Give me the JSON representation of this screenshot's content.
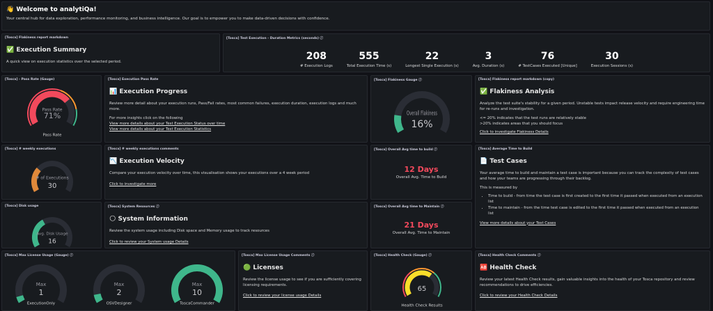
{
  "header": {
    "title": "👋 Welcome to analytiQa!",
    "subtitle": "Your central hub for data exploration, performance monitoring, and business intelligence. Our goal is to empower you to make data-driven decisions with confidence."
  },
  "execution_summary": {
    "panel_title": "[Tosca] Flakiness report markdown",
    "heading": "✅ Execution Summary",
    "text": "A quick view on execution statistics over the selected period."
  },
  "duration_metrics": {
    "panel_title": "[Tosca] Test Execution - Duration Metrics (seconds) ⓘ",
    "stats": [
      {
        "value": 208,
        "label": "# Execution Logs"
      },
      {
        "value": 555,
        "label": "Total Execution Time (s)"
      },
      {
        "value": 22,
        "label": "Longest Single Execution (s)"
      },
      {
        "value": 3,
        "label": "Avg. Duration (s)"
      },
      {
        "value": 76,
        "label": "# TestCases Executed [Unique]"
      },
      {
        "value": 30,
        "label": "Execution Sessions (s)"
      }
    ]
  },
  "pass_rate_gauge": {
    "panel_title": "[Tosca] - Pass Rate (Gauge)",
    "gauge_title": "Pass Rate",
    "value": 71,
    "value_label": "71%",
    "caption": "Pass Rate"
  },
  "execution_progress": {
    "panel_title": "[Tosca] Execution Pass Rate",
    "heading": "📊 Execution Progress",
    "text": "Review more detail about your execution runs, Pass/Fail rates, most common failures, execution duration, execution logs and much more.",
    "links_intro": "For more insights click on the following",
    "links": [
      "View more details about your Test Execution Status over time",
      "View more details about your Test Execution Statistics"
    ]
  },
  "flakiness_gauge": {
    "panel_title": "[Tosca] Flakiness Gauge ⓘ",
    "gauge_title": "Overall Flakiness",
    "value": 16,
    "value_label": "16%"
  },
  "flakiness_analysis": {
    "panel_title": "[Tosca] Flakiness report markdown (copy)",
    "heading": "✅ Flakiness Analysis",
    "text": "Analyze the test suite's stability for a given period. Unstable tests impact release velocity and require engineering time for re-runs and investigation.",
    "notes": [
      "<= 20% indicates that the test runs are relatively stable",
      ">20% indicates areas that you should focus"
    ],
    "link": "Click to investigate Flakiness Details"
  },
  "weekly_executions_gauge": {
    "panel_title": "[Tosca] # weekly executions",
    "gauge_title": "# of Executions",
    "value": 30
  },
  "execution_velocity": {
    "panel_title": "[Tosca] # weekly executions comments",
    "heading": "📉 Execution Velocity",
    "text": "Compare your execution velocity over time, this visualisation shows your executions over a 4 week period",
    "link": "Click to investigate more"
  },
  "avg_time_to_build": {
    "panel_title": "[Tosca] Overall Avg time to build ⓘ",
    "value": 12,
    "value_label": "12 Days",
    "caption": "Overall Avg. Time to Build"
  },
  "test_cases": {
    "panel_title": "[Tosca] Average Time to Build",
    "heading": "📄 Test Cases",
    "text": "Your average time to build and maintain a test case is important because you can track the complexity of test cases and how your teams are progressing through their backlog.",
    "measured_by": "This is measured by",
    "bullets": [
      "Time to build - from time the test case is first created to the first time it passed when executed from an execution list",
      "Time to maintain - from the time test case is edited to the first time it passed when executed from an execution list"
    ],
    "link": "View more details about your Test Cases"
  },
  "disk_usage_gauge": {
    "panel_title": "[Tosca] Disk usage",
    "gauge_title": "Avg. Disk Usage",
    "value": 16
  },
  "system_information": {
    "panel_title": "[Tosca] System Resources ⓘ",
    "heading": "🌕 System Information",
    "text": "Review the system usage including Disk space and Memory usage to track resources",
    "link": "Click to review your System usage Details"
  },
  "avg_time_to_maintain": {
    "panel_title": "[Tosca] Overall Avg time to Maintain ⓘ",
    "value": 21,
    "value_label": "21 Days",
    "caption": "Overall Avg. Time to Maintain"
  },
  "license_gauges": {
    "panel_title": "[Tosca] Max License Usage (Gauge) ⓘ",
    "gauges": [
      {
        "title": "Max",
        "value": 1,
        "caption": "ExecutionOnly"
      },
      {
        "title": "Max",
        "value": 2,
        "caption": "OSVDesigner"
      },
      {
        "title": "Max",
        "value": 10,
        "caption": "ToscaCommander"
      }
    ]
  },
  "licenses": {
    "panel_title": "[Tosca] Max License Usage Comments ⓘ",
    "heading": "🟢 Licenses",
    "text": "Review the license usage to see if you are sufficiently covering licensing requirements.",
    "link": "Click to review your license usage Details"
  },
  "health_check_gauge": {
    "panel_title": "[Tosca] Health Check (Gauge) ⓘ",
    "value": 65,
    "caption": "Health Check Results"
  },
  "health_check": {
    "panel_title": "[Tosca] Health Check Comments ⓘ",
    "heading": "🆎 Health Check",
    "text": "Review your latest Health Check results, gain valuable insights into the health of your Tosca repository and review recommendations to drive efficiencies.",
    "link": "Click to review your Health Check Details"
  }
}
